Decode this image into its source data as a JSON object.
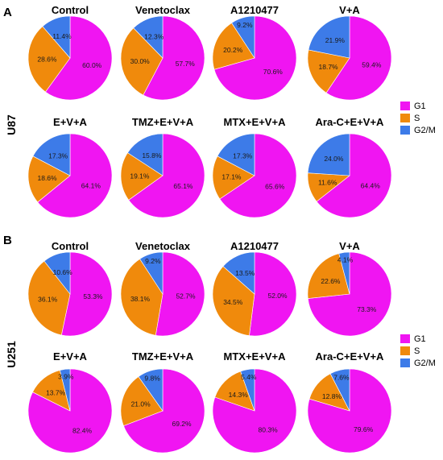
{
  "colors": {
    "G1": "#f015f2",
    "S": "#f08a0c",
    "G2/M": "#3d7be8"
  },
  "legend": [
    "G1",
    "S",
    "G2/M"
  ],
  "chart_data": [
    {
      "panel": "A",
      "row_label": "U87",
      "type": "pie",
      "pies": [
        {
          "title": "Control",
          "values": {
            "G1": 60.0,
            "S": 28.6,
            "G2/M": 11.4
          },
          "labels": {
            "G1": "60.0%",
            "S": "28.6%",
            "G2/M": "11.4%"
          }
        },
        {
          "title": "Venetoclax",
          "values": {
            "G1": 57.7,
            "S": 30.0,
            "G2/M": 12.3
          },
          "labels": {
            "G1": "57.7%",
            "S": "30.0%",
            "G2/M": "12.3%"
          }
        },
        {
          "title": "A1210477",
          "values": {
            "G1": 70.6,
            "S": 20.2,
            "G2/M": 9.2
          },
          "labels": {
            "G1": "70.6%",
            "S": "20.2%",
            "G2/M": "9.2%"
          }
        },
        {
          "title": "V+A",
          "values": {
            "G1": 59.4,
            "S": 18.7,
            "G2/M": 21.9
          },
          "labels": {
            "G1": "59.4%",
            "S": "18.7%",
            "G2/M": "21.9%"
          }
        },
        {
          "title": "E+V+A",
          "values": {
            "G1": 64.1,
            "S": 18.6,
            "G2/M": 17.3
          },
          "labels": {
            "G1": "64.1%",
            "S": "18.6%",
            "G2/M": "17.3%"
          }
        },
        {
          "title": "TMZ+E+V+A",
          "values": {
            "G1": 65.1,
            "S": 19.1,
            "G2/M": 15.8
          },
          "labels": {
            "G1": "65.1%",
            "S": "19.1%",
            "G2/M": "15.8%"
          }
        },
        {
          "title": "MTX+E+V+A",
          "values": {
            "G1": 65.6,
            "S": 17.1,
            "G2/M": 17.3
          },
          "labels": {
            "G1": "65.6%",
            "S": "17.1%",
            "G2/M": "17.3%"
          }
        },
        {
          "title": "Ara-C+E+V+A",
          "values": {
            "G1": 64.4,
            "S": 11.6,
            "G2/M": 24.0
          },
          "labels": {
            "G1": "64.4%",
            "S": "11.6%",
            "G2/M": "24.0%"
          }
        }
      ]
    },
    {
      "panel": "B",
      "row_label": "U251",
      "type": "pie",
      "pies": [
        {
          "title": "Control",
          "values": {
            "G1": 53.3,
            "S": 36.1,
            "G2/M": 10.6
          },
          "labels": {
            "G1": "53.3%",
            "S": "36.1%",
            "G2/M": "10.6%"
          }
        },
        {
          "title": "Venetoclax",
          "values": {
            "G1": 52.7,
            "S": 38.1,
            "G2/M": 9.2
          },
          "labels": {
            "G1": "52.7%",
            "S": "38.1%",
            "G2/M": "9.2%"
          }
        },
        {
          "title": "A1210477",
          "values": {
            "G1": 52.0,
            "S": 34.5,
            "G2/M": 13.5
          },
          "labels": {
            "G1": "52.0%",
            "S": "34.5%",
            "G2/M": "13.5%"
          }
        },
        {
          "title": "V+A",
          "values": {
            "G1": 73.3,
            "S": 22.6,
            "G2/M": 4.1
          },
          "labels": {
            "G1": "73.3%",
            "S": "22.6%",
            "G2/M": "4.1%"
          }
        },
        {
          "title": "E+V+A",
          "values": {
            "G1": 82.4,
            "S": 13.7,
            "G2/M": 3.9
          },
          "labels": {
            "G1": "82.4%",
            "S": "13.7%",
            "G2/M": "3.9%"
          }
        },
        {
          "title": "TMZ+E+V+A",
          "values": {
            "G1": 69.2,
            "S": 21.0,
            "G2/M": 9.8
          },
          "labels": {
            "G1": "69.2%",
            "S": "21.0%",
            "G2/M": "9.8%"
          }
        },
        {
          "title": "MTX+E+V+A",
          "values": {
            "G1": 80.3,
            "S": 14.3,
            "G2/M": 5.4
          },
          "labels": {
            "G1": "80.3%",
            "S": "14.3%",
            "G2/M": "5.4%"
          }
        },
        {
          "title": "Ara-C+E+V+A",
          "values": {
            "G1": 79.6,
            "S": 12.8,
            "G2/M": 7.6
          },
          "labels": {
            "G1": "79.6%",
            "S": "12.8%",
            "G2/M": "7.6%"
          }
        }
      ]
    }
  ]
}
